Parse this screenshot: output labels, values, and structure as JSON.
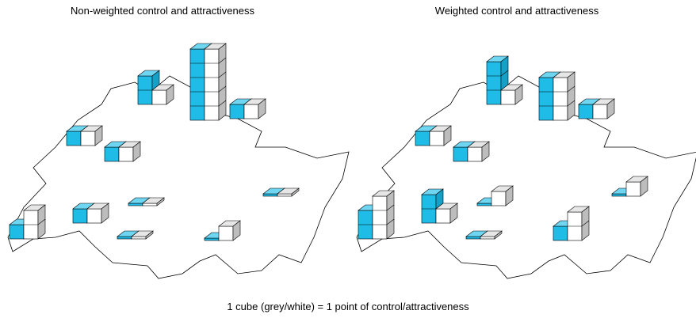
{
  "maps": [
    {
      "title": "Non-weighted control and attractiveness",
      "stacks": [
        {
          "control": 2,
          "attractiveness": 1
        },
        {
          "control": 5,
          "attractiveness": 5
        },
        {
          "control": 1,
          "attractiveness": 1
        },
        {
          "control": 1,
          "attractiveness": 1
        },
        {
          "control": 1,
          "attractiveness": 1
        },
        {
          "control": 0,
          "attractiveness": 0
        },
        {
          "control": 0,
          "attractiveness": 0
        },
        {
          "control": 1,
          "attractiveness": 1
        },
        {
          "control": 1,
          "attractiveness": 2
        },
        {
          "control": 0,
          "attractiveness": 0
        },
        {
          "control": 0,
          "attractiveness": 1
        }
      ]
    },
    {
      "title": "Weighted control and attractiveness",
      "stacks": [
        {
          "control": 3,
          "attractiveness": 1
        },
        {
          "control": 3,
          "attractiveness": 3
        },
        {
          "control": 1,
          "attractiveness": 1
        },
        {
          "control": 1,
          "attractiveness": 1
        },
        {
          "control": 1,
          "attractiveness": 1
        },
        {
          "control": 0,
          "attractiveness": 1
        },
        {
          "control": 0,
          "attractiveness": 1
        },
        {
          "control": 2,
          "attractiveness": 1
        },
        {
          "control": 2,
          "attractiveness": 3
        },
        {
          "control": 0,
          "attractiveness": 0
        },
        {
          "control": 1,
          "attractiveness": 2
        }
      ]
    }
  ],
  "caption": "1 cube (grey/white) = 1 point of control/attractiveness"
}
